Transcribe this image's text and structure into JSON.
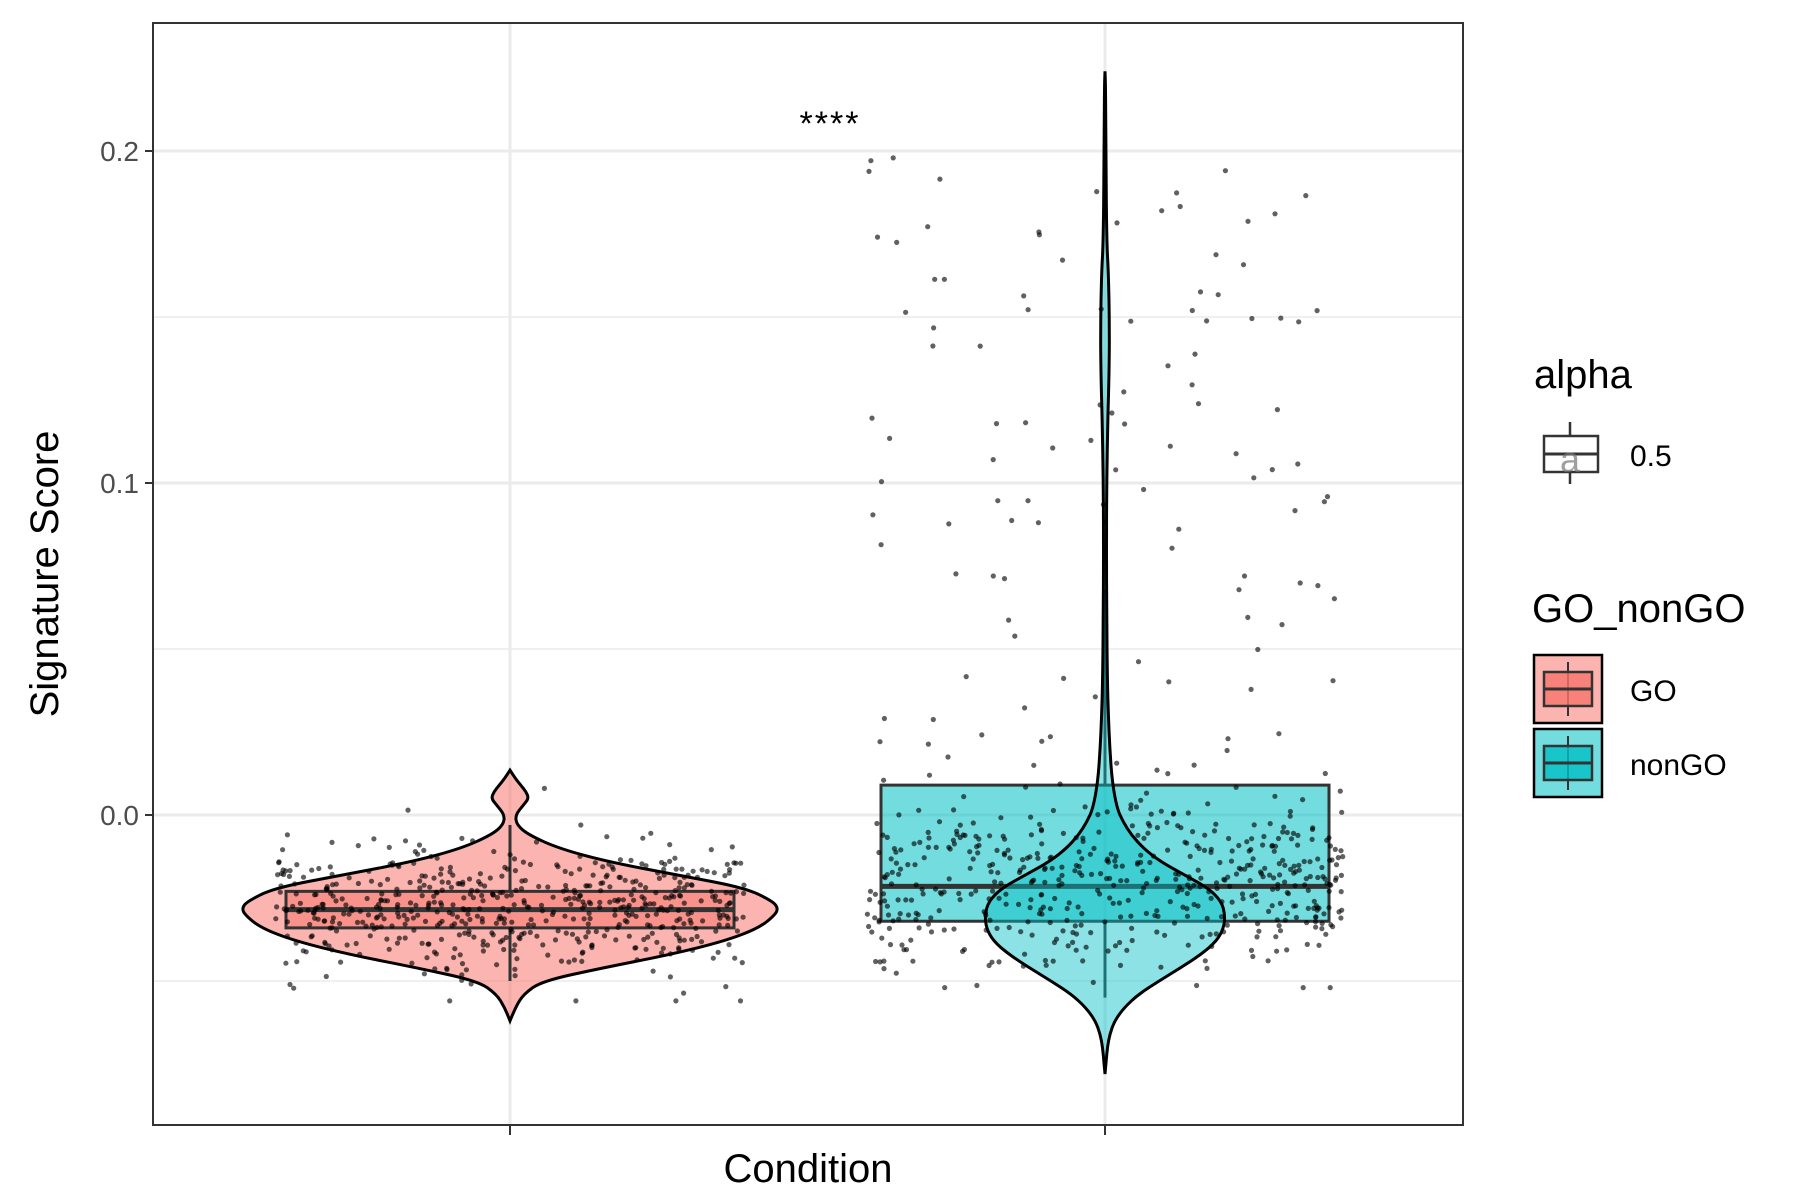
{
  "chart_data": {
    "type": "violin+box+jitter",
    "title": "",
    "xlabel": "Condition",
    "ylabel": "Signature Score",
    "ylim": [
      -0.095,
      0.24
    ],
    "y_ticks": [
      0.0,
      0.1,
      0.2
    ],
    "y_tick_labels": [
      "0.0",
      "0.1",
      "0.2"
    ],
    "y_minor_ticks": [
      -0.05,
      0.05,
      0.15
    ],
    "grid": true,
    "annotation": "****",
    "groups": [
      {
        "name": "GO",
        "color": "#F8766D",
        "box": {
          "q1": -0.034,
          "median": -0.0285,
          "q3": -0.023,
          "whisker_low": -0.05,
          "whisker_high": -0.003
        },
        "violin": {
          "y": [
            -0.062,
            -0.058,
            -0.054,
            -0.05,
            -0.046,
            -0.042,
            -0.038,
            -0.034,
            -0.03,
            -0.028,
            -0.026,
            -0.022,
            -0.018,
            -0.014,
            -0.01,
            -0.006,
            -0.003,
            0.0,
            0.003,
            0.005,
            0.007,
            0.009,
            0.011,
            0.0135
          ],
          "width": [
            0.0,
            0.02,
            0.05,
            0.12,
            0.35,
            0.6,
            0.8,
            0.93,
            0.99,
            1.0,
            0.98,
            0.88,
            0.62,
            0.36,
            0.18,
            0.07,
            0.025,
            0.02,
            0.05,
            0.07,
            0.06,
            0.04,
            0.02,
            0.0
          ]
        },
        "points": {
          "n": 560,
          "range": [
            -0.056,
            0.008
          ],
          "center": -0.028,
          "spread": 0.009
        }
      },
      {
        "name": "nonGO",
        "color": "#00BFC4",
        "box": {
          "q1": -0.032,
          "median": -0.0215,
          "q3": 0.009,
          "whisker_low": -0.055,
          "whisker_high": 0.068
        },
        "violin": {
          "y": [
            -0.078,
            -0.074,
            -0.07,
            -0.066,
            -0.062,
            -0.058,
            -0.054,
            -0.05,
            -0.046,
            -0.042,
            -0.038,
            -0.034,
            -0.03,
            -0.026,
            -0.022,
            -0.018,
            -0.014,
            -0.01,
            -0.006,
            -0.002,
            0.002,
            0.01,
            0.02,
            0.03,
            0.04,
            0.06,
            0.08,
            0.1,
            0.12,
            0.13,
            0.14,
            0.145,
            0.155,
            0.165,
            0.17,
            0.18,
            0.19,
            0.2,
            0.21,
            0.22,
            0.224
          ],
          "width": [
            0.0,
            0.01,
            0.02,
            0.04,
            0.08,
            0.16,
            0.28,
            0.45,
            0.63,
            0.8,
            0.93,
            0.99,
            1.0,
            0.97,
            0.86,
            0.66,
            0.46,
            0.32,
            0.22,
            0.15,
            0.1,
            0.06,
            0.04,
            0.028,
            0.02,
            0.014,
            0.012,
            0.014,
            0.024,
            0.032,
            0.036,
            0.036,
            0.034,
            0.026,
            0.018,
            0.012,
            0.01,
            0.008,
            0.006,
            0.004,
            0.0
          ]
        },
        "points": {
          "n": 620,
          "range": [
            -0.052,
            0.2
          ],
          "center": -0.02,
          "spread": 0.025
        }
      }
    ],
    "legends": [
      {
        "title": "alpha",
        "entries": [
          {
            "label": "0.5"
          }
        ]
      },
      {
        "title": "GO_nonGO",
        "entries": [
          {
            "label": "GO",
            "color": "#F8766D"
          },
          {
            "label": "nonGO",
            "color": "#00BFC4"
          }
        ]
      }
    ]
  }
}
